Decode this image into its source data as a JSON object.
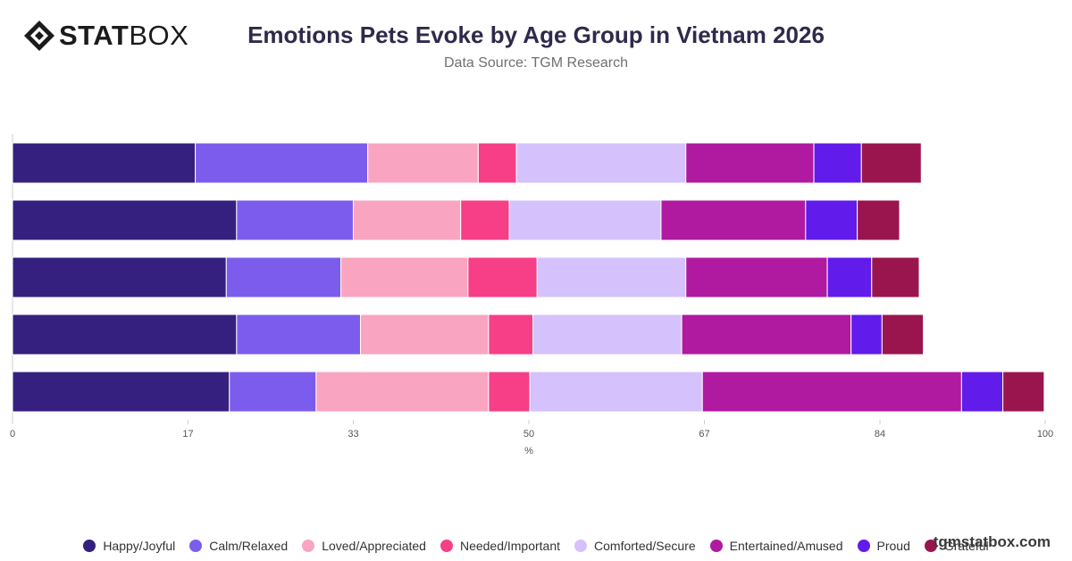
{
  "brand": {
    "logo_strong": "STAT",
    "logo_light": "BOX",
    "watermark": "tgmstatbox.com"
  },
  "chart_data": {
    "type": "bar",
    "orientation": "horizontal",
    "stacked": true,
    "title": "Emotions Pets Evoke by Age Group in Vietnam 2026",
    "subtitle": "Data Source: TGM Research",
    "xlabel": "%",
    "ylabel": "",
    "xlim": [
      0,
      100
    ],
    "x_ticks": [
      "0",
      "17",
      "33",
      "50",
      "67",
      "84",
      "100"
    ],
    "categories": [
      "",
      "",
      "",
      "",
      ""
    ],
    "legend_position": "bottom",
    "series": [
      {
        "name": "Happy/Joyful",
        "color": "#35207f",
        "values": [
          17.7,
          21.7,
          20.7,
          21.7,
          21.0
        ]
      },
      {
        "name": "Calm/Relaxed",
        "color": "#7c5ced",
        "values": [
          16.7,
          11.3,
          11.1,
          12.0,
          8.4
        ]
      },
      {
        "name": "Loved/Appreciated",
        "color": "#f9a4c0",
        "values": [
          10.7,
          10.4,
          12.3,
          12.4,
          16.7
        ]
      },
      {
        "name": "Needed/Important",
        "color": "#f63f87",
        "values": [
          3.7,
          4.7,
          6.7,
          4.3,
          4.0
        ]
      },
      {
        "name": "Comforted/Secure",
        "color": "#d5c1fb",
        "values": [
          16.4,
          14.7,
          14.4,
          14.4,
          16.7
        ]
      },
      {
        "name": "Entertained/Amused",
        "color": "#b01aa0",
        "values": [
          12.4,
          14.0,
          13.7,
          16.4,
          25.1
        ]
      },
      {
        "name": "Proud",
        "color": "#611bea",
        "values": [
          4.6,
          5.0,
          4.3,
          3.0,
          4.0
        ]
      },
      {
        "name": "Grateful",
        "color": "#9a154e",
        "values": [
          5.8,
          4.1,
          4.6,
          4.0,
          4.0
        ]
      }
    ]
  }
}
